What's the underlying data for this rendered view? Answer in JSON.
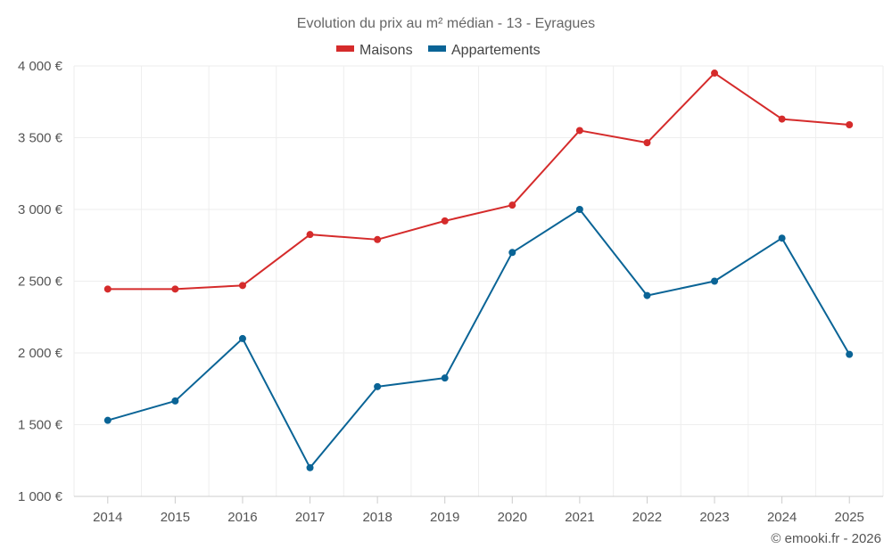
{
  "chart_data": {
    "type": "line",
    "title": "Evolution du prix au m² médian - 13 - Eyragues",
    "categories": [
      "2014",
      "2015",
      "2016",
      "2017",
      "2018",
      "2019",
      "2020",
      "2021",
      "2022",
      "2023",
      "2024",
      "2025"
    ],
    "series": [
      {
        "name": "Maisons",
        "color": "#d52b2b",
        "values": [
          2445,
          2445,
          2470,
          2825,
          2790,
          2920,
          3030,
          3550,
          3465,
          3950,
          3630,
          3590
        ]
      },
      {
        "name": "Appartements",
        "color": "#0a6496",
        "values": [
          1530,
          1665,
          2100,
          1200,
          1765,
          1825,
          2700,
          3000,
          2400,
          2500,
          2800,
          1990
        ]
      }
    ],
    "ylim": [
      1000,
      4000
    ],
    "yticks": [
      1000,
      1500,
      2000,
      2500,
      3000,
      3500,
      4000
    ],
    "ytick_labels": [
      "1 000 €",
      "1 500 €",
      "2 000 €",
      "2 500 €",
      "3 000 €",
      "3 500 €",
      "4 000 €"
    ],
    "legend_position": "top-center",
    "grid": true,
    "credit": "© emooki.fr - 2026"
  }
}
